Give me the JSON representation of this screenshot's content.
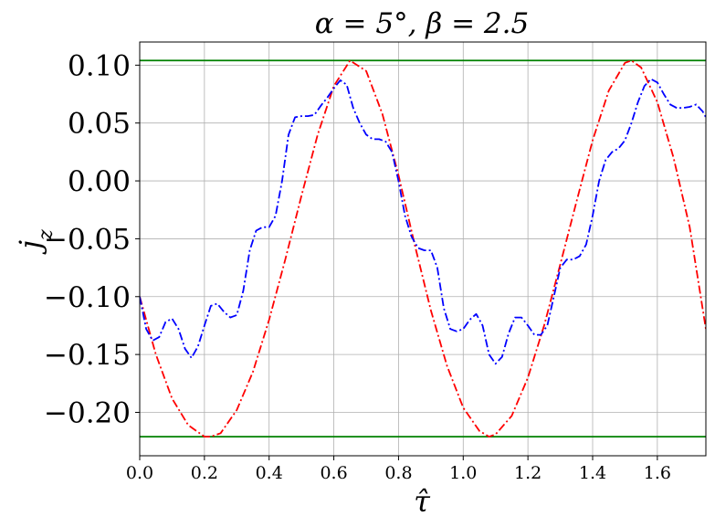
{
  "chart_data": {
    "type": "line",
    "title": "α = 5°, β = 2.5",
    "xlabel": "τ̂",
    "ylabel": "j_z",
    "xlim": [
      0.0,
      1.75
    ],
    "ylim": [
      -0.2375,
      0.12
    ],
    "grid": true,
    "x_ticks": [
      {
        "value": 0.0,
        "label": "0.0"
      },
      {
        "value": 0.2,
        "label": "0.2"
      },
      {
        "value": 0.4,
        "label": "0.4"
      },
      {
        "value": 0.6,
        "label": "0.6"
      },
      {
        "value": 0.8,
        "label": "0.8"
      },
      {
        "value": 1.0,
        "label": "1.0"
      },
      {
        "value": 1.2,
        "label": "1.2"
      },
      {
        "value": 1.4,
        "label": "1.4"
      },
      {
        "value": 1.6,
        "label": "1.6"
      }
    ],
    "y_ticks": [
      {
        "value": 0.1,
        "label": "0.10"
      },
      {
        "value": 0.05,
        "label": "0.05"
      },
      {
        "value": 0.0,
        "label": "0.00"
      },
      {
        "value": -0.05,
        "label": "−0.05"
      },
      {
        "value": -0.1,
        "label": "−0.10"
      },
      {
        "value": -0.15,
        "label": "−0.15"
      },
      {
        "value": -0.2,
        "label": "−0.20"
      }
    ],
    "hlines": [
      {
        "y": 0.104,
        "color": "#008000"
      },
      {
        "y": -0.221,
        "color": "#008000"
      }
    ],
    "series": [
      {
        "color": "#ff0000",
        "style": "dashdot",
        "points": [
          [
            0.0,
            -0.1
          ],
          [
            0.05,
            -0.15
          ],
          [
            0.1,
            -0.188
          ],
          [
            0.15,
            -0.211
          ],
          [
            0.2,
            -0.221
          ],
          [
            0.22,
            -0.221
          ],
          [
            0.25,
            -0.218
          ],
          [
            0.3,
            -0.198
          ],
          [
            0.35,
            -0.165
          ],
          [
            0.4,
            -0.12
          ],
          [
            0.45,
            -0.068
          ],
          [
            0.5,
            -0.013
          ],
          [
            0.55,
            0.04
          ],
          [
            0.6,
            0.082
          ],
          [
            0.65,
            0.104
          ],
          [
            0.7,
            0.095
          ],
          [
            0.75,
            0.058
          ],
          [
            0.8,
            0.005
          ],
          [
            0.85,
            -0.055
          ],
          [
            0.9,
            -0.112
          ],
          [
            0.95,
            -0.16
          ],
          [
            1.0,
            -0.196
          ],
          [
            1.05,
            -0.216
          ],
          [
            1.08,
            -0.221
          ],
          [
            1.1,
            -0.219
          ],
          [
            1.15,
            -0.203
          ],
          [
            1.2,
            -0.17
          ],
          [
            1.25,
            -0.125
          ],
          [
            1.3,
            -0.072
          ],
          [
            1.35,
            -0.018
          ],
          [
            1.4,
            0.035
          ],
          [
            1.45,
            0.078
          ],
          [
            1.5,
            0.102
          ],
          [
            1.52,
            0.104
          ],
          [
            1.55,
            0.098
          ],
          [
            1.6,
            0.068
          ],
          [
            1.65,
            0.02
          ],
          [
            1.7,
            -0.04
          ],
          [
            1.75,
            -0.128
          ]
        ]
      },
      {
        "color": "#0000ff",
        "style": "dashdot",
        "points": [
          [
            0.0,
            -0.1
          ],
          [
            0.02,
            -0.128
          ],
          [
            0.04,
            -0.138
          ],
          [
            0.06,
            -0.135
          ],
          [
            0.08,
            -0.122
          ],
          [
            0.1,
            -0.119
          ],
          [
            0.12,
            -0.128
          ],
          [
            0.14,
            -0.145
          ],
          [
            0.16,
            -0.153
          ],
          [
            0.18,
            -0.143
          ],
          [
            0.2,
            -0.125
          ],
          [
            0.22,
            -0.108
          ],
          [
            0.24,
            -0.106
          ],
          [
            0.26,
            -0.113
          ],
          [
            0.28,
            -0.118
          ],
          [
            0.3,
            -0.116
          ],
          [
            0.32,
            -0.095
          ],
          [
            0.34,
            -0.06
          ],
          [
            0.36,
            -0.043
          ],
          [
            0.38,
            -0.04
          ],
          [
            0.4,
            -0.04
          ],
          [
            0.42,
            -0.03
          ],
          [
            0.44,
            0.0
          ],
          [
            0.46,
            0.04
          ],
          [
            0.48,
            0.055
          ],
          [
            0.5,
            0.056
          ],
          [
            0.52,
            0.056
          ],
          [
            0.54,
            0.057
          ],
          [
            0.56,
            0.065
          ],
          [
            0.58,
            0.072
          ],
          [
            0.6,
            0.08
          ],
          [
            0.62,
            0.087
          ],
          [
            0.64,
            0.083
          ],
          [
            0.66,
            0.063
          ],
          [
            0.68,
            0.05
          ],
          [
            0.7,
            0.04
          ],
          [
            0.72,
            0.036
          ],
          [
            0.74,
            0.036
          ],
          [
            0.76,
            0.034
          ],
          [
            0.78,
            0.025
          ],
          [
            0.8,
            0.0
          ],
          [
            0.82,
            -0.03
          ],
          [
            0.84,
            -0.048
          ],
          [
            0.86,
            -0.058
          ],
          [
            0.88,
            -0.06
          ],
          [
            0.9,
            -0.06
          ],
          [
            0.92,
            -0.075
          ],
          [
            0.94,
            -0.11
          ],
          [
            0.96,
            -0.128
          ],
          [
            0.98,
            -0.13
          ],
          [
            1.0,
            -0.128
          ],
          [
            1.02,
            -0.12
          ],
          [
            1.04,
            -0.115
          ],
          [
            1.06,
            -0.125
          ],
          [
            1.08,
            -0.15
          ],
          [
            1.1,
            -0.158
          ],
          [
            1.12,
            -0.152
          ],
          [
            1.14,
            -0.132
          ],
          [
            1.16,
            -0.118
          ],
          [
            1.18,
            -0.118
          ],
          [
            1.2,
            -0.125
          ],
          [
            1.22,
            -0.133
          ],
          [
            1.24,
            -0.133
          ],
          [
            1.26,
            -0.125
          ],
          [
            1.28,
            -0.1
          ],
          [
            1.3,
            -0.075
          ],
          [
            1.32,
            -0.068
          ],
          [
            1.34,
            -0.068
          ],
          [
            1.36,
            -0.065
          ],
          [
            1.38,
            -0.055
          ],
          [
            1.4,
            -0.03
          ],
          [
            1.42,
            0.0
          ],
          [
            1.44,
            0.018
          ],
          [
            1.46,
            0.025
          ],
          [
            1.48,
            0.028
          ],
          [
            1.5,
            0.035
          ],
          [
            1.52,
            0.05
          ],
          [
            1.54,
            0.068
          ],
          [
            1.56,
            0.082
          ],
          [
            1.58,
            0.088
          ],
          [
            1.6,
            0.085
          ],
          [
            1.62,
            0.075
          ],
          [
            1.64,
            0.066
          ],
          [
            1.66,
            0.063
          ],
          [
            1.68,
            0.063
          ],
          [
            1.7,
            0.064
          ],
          [
            1.72,
            0.066
          ],
          [
            1.74,
            0.06
          ],
          [
            1.75,
            0.055
          ]
        ]
      }
    ]
  }
}
